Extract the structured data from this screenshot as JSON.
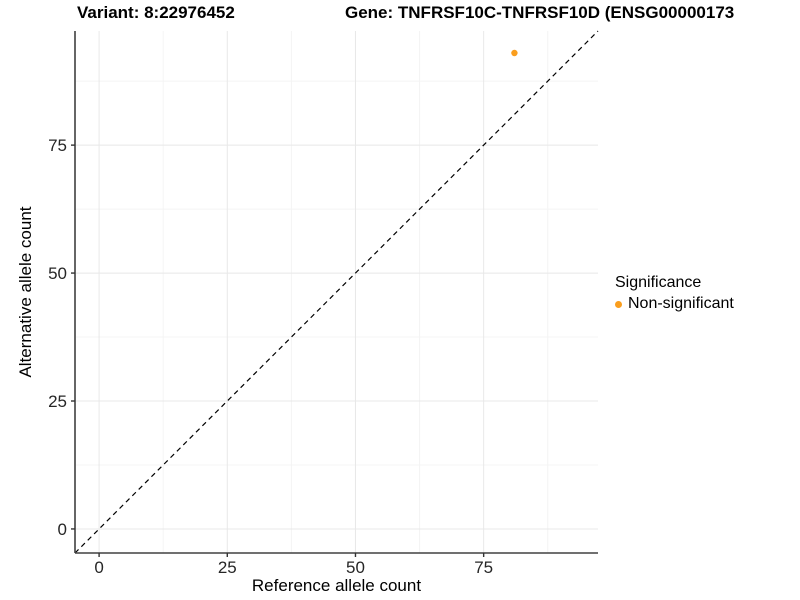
{
  "header": {
    "variant_title": "Variant: 8:22976452",
    "gene_title": "Gene: TNFRSF10C-TNFRSF10D (ENSG00000173"
  },
  "chart_data": {
    "type": "scatter",
    "title": "Variant: 8:22976452 / Gene: TNFRSF10C-TNFRSF10D (ENSG00000173",
    "xlabel": "Reference allele count",
    "ylabel": "Alternative allele count",
    "xlim": [
      -4.7,
      97.3
    ],
    "ylim": [
      -4.7,
      97.3
    ],
    "xticks": [
      0,
      25,
      50,
      75
    ],
    "yticks": [
      0,
      25,
      50,
      75
    ],
    "minor_step": 12.5,
    "grid": "major+minor",
    "identity_line": {
      "equation": "y = x",
      "style": "dashed",
      "color": "#000000"
    },
    "series": [
      {
        "name": "Non-significant",
        "color": "#FA9E1E",
        "points": [
          {
            "x": 81,
            "y": 93
          }
        ]
      }
    ],
    "legend": {
      "title": "Significance",
      "position": "right",
      "entries": [
        {
          "label": "Non-significant",
          "color": "#FA9E1E"
        }
      ]
    },
    "style": {
      "axis_line_color": "#404040",
      "grid_major_color": "#e8e8e8",
      "grid_minor_color": "#f4f4f4",
      "tick_color": "#333333",
      "point_radius": 3.2
    }
  }
}
